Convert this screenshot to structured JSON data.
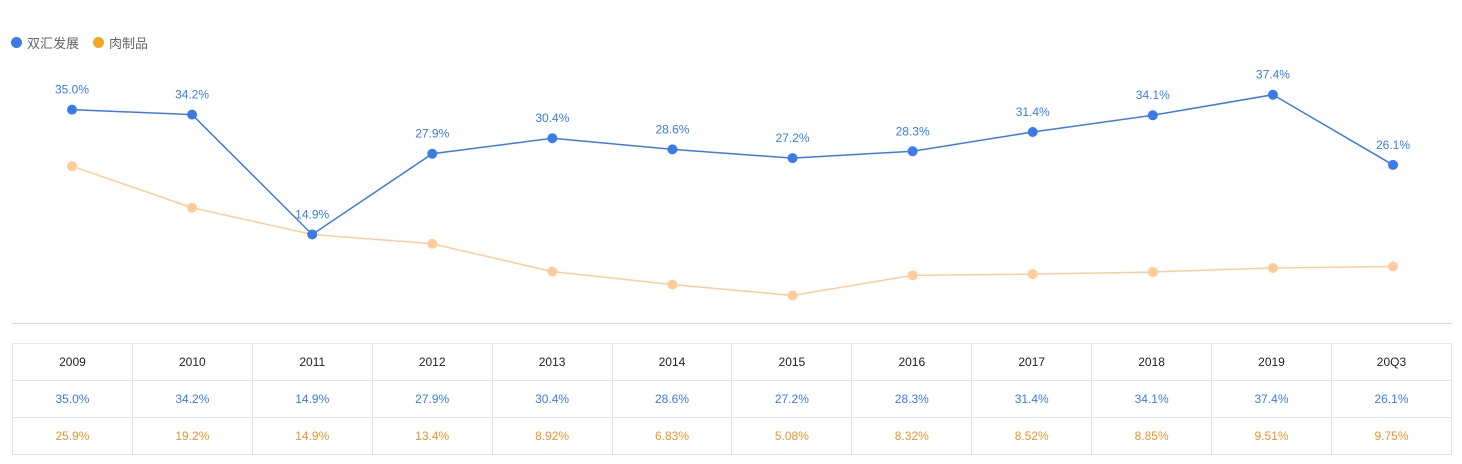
{
  "chart_data": {
    "type": "line",
    "categories": [
      "2009",
      "2010",
      "2011",
      "2012",
      "2013",
      "2014",
      "2015",
      "2016",
      "2017",
      "2018",
      "2019",
      "20Q3"
    ],
    "series": [
      {
        "name": "双汇发展",
        "color": "#3B7BE8",
        "values": [
          35.0,
          34.2,
          14.9,
          27.9,
          30.4,
          28.6,
          27.2,
          28.3,
          31.4,
          34.1,
          37.4,
          26.1
        ],
        "labels": [
          "35.0%",
          "34.2%",
          "14.9%",
          "27.9%",
          "30.4%",
          "28.6%",
          "27.2%",
          "28.3%",
          "31.4%",
          "34.1%",
          "37.4%",
          "26.1%"
        ]
      },
      {
        "name": "肉制品",
        "color": "#F5A623",
        "line_color": "#FFCC99",
        "values": [
          25.9,
          19.2,
          14.9,
          13.4,
          8.92,
          6.83,
          5.08,
          8.32,
          8.52,
          8.85,
          9.51,
          9.75
        ],
        "labels": [
          "25.9%",
          "19.2%",
          "14.9%",
          "13.4%",
          "8.92%",
          "6.83%",
          "5.08%",
          "8.32%",
          "8.52%",
          "8.85%",
          "9.51%",
          "9.75%"
        ]
      }
    ],
    "ylim": [
      0,
      44
    ],
    "legend": "top-left",
    "data_labels_series": "双汇发展",
    "table_colors": {
      "years": "#222222",
      "s1": "#3B7BE8",
      "s2": "#F0932B"
    }
  }
}
